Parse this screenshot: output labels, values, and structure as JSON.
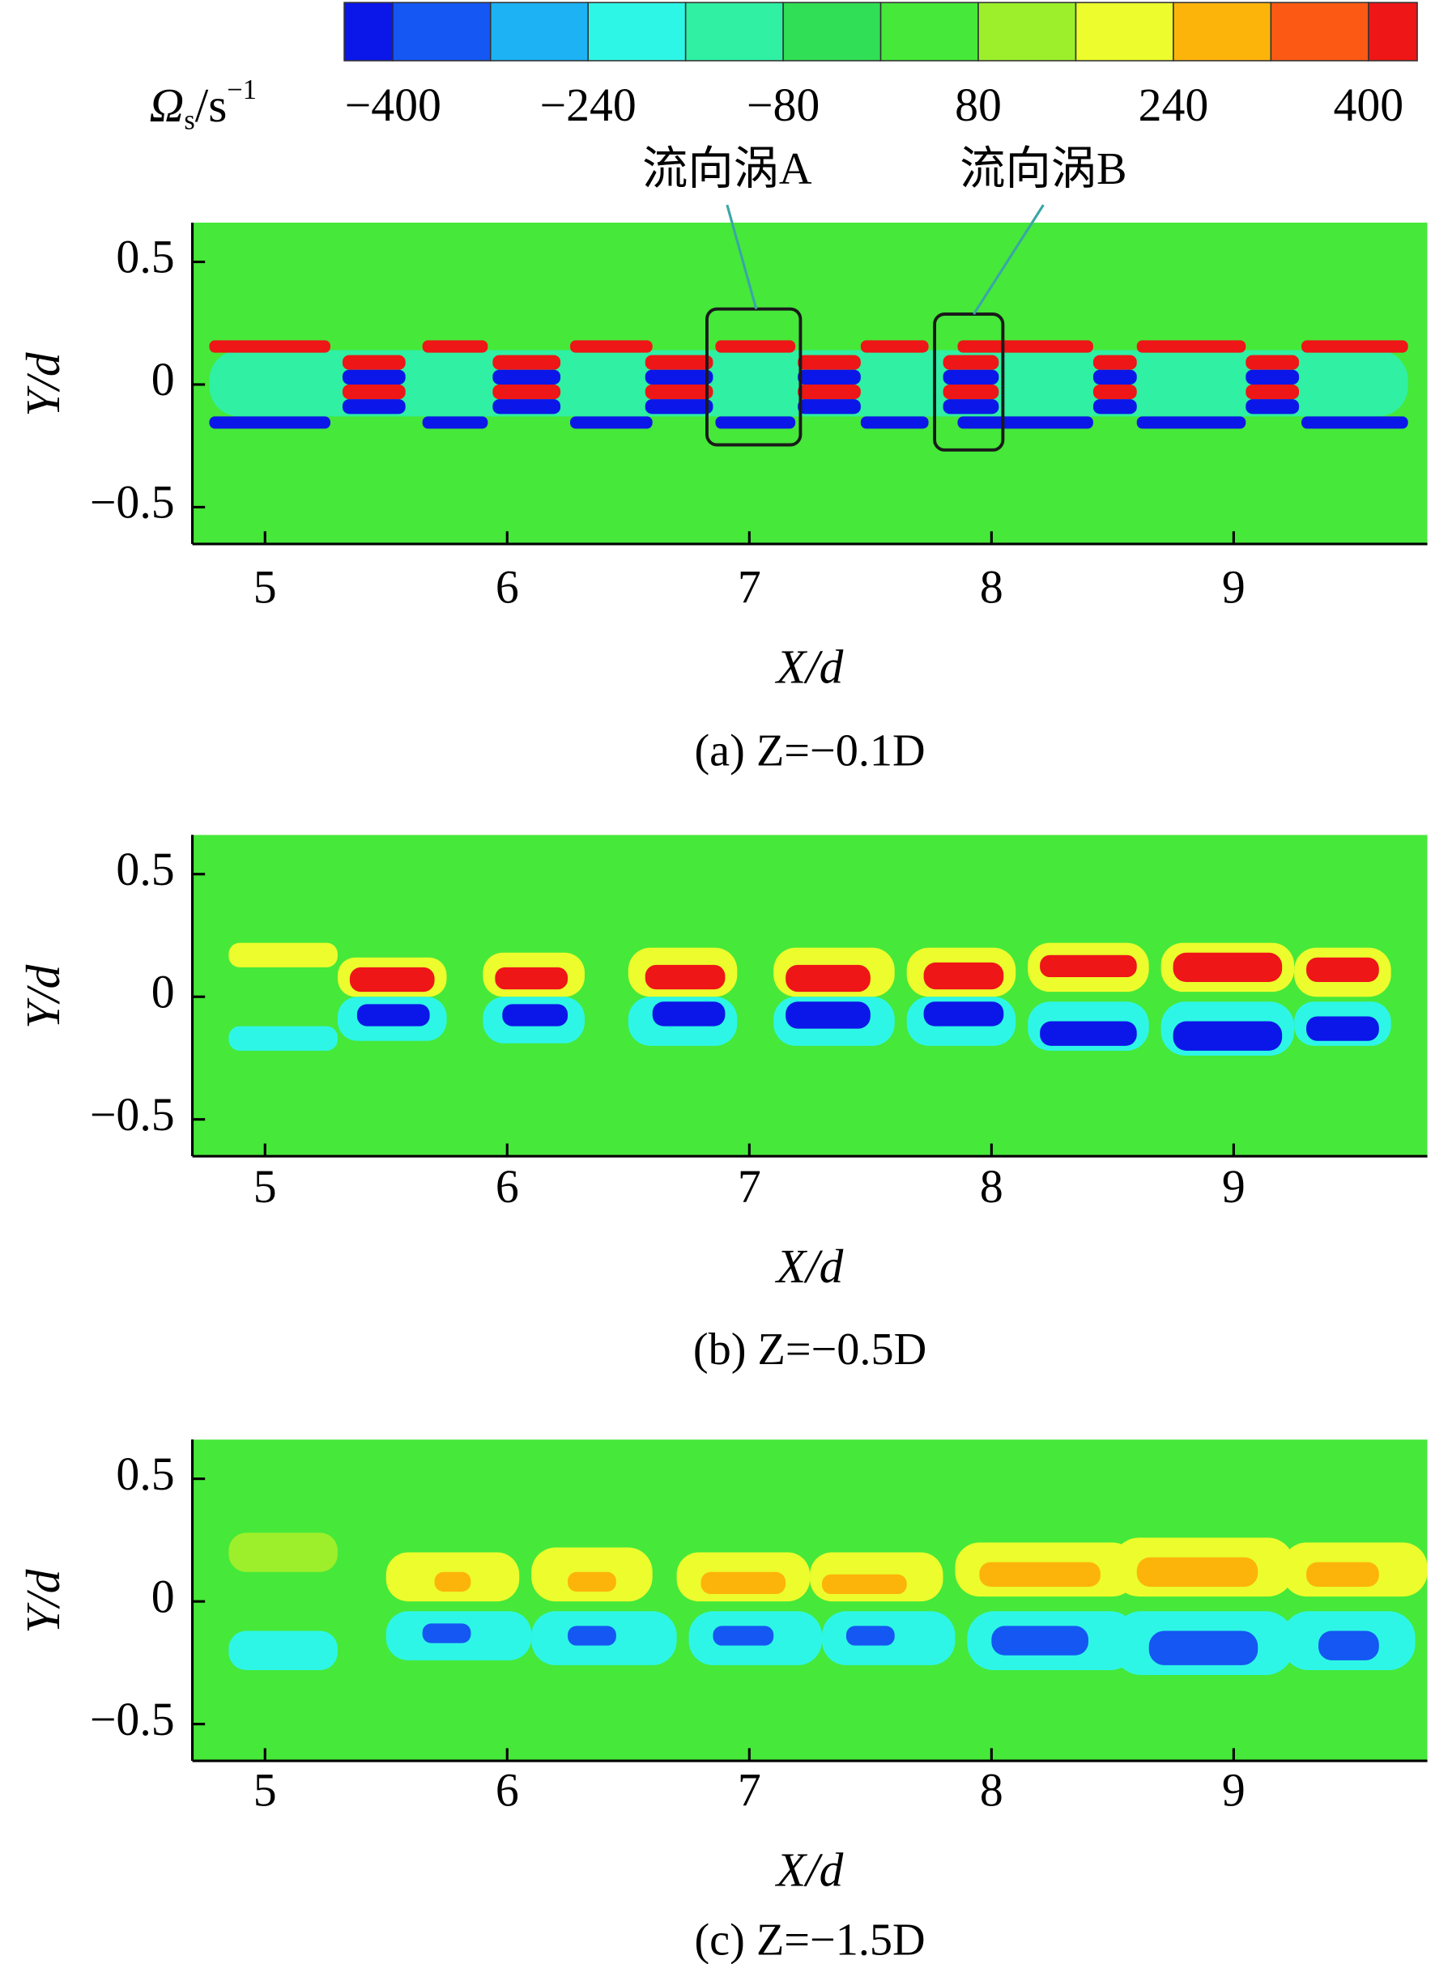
{
  "chart_data": {
    "type": "contour",
    "colorbar": {
      "label": {
        "symbol": "Ω",
        "subscript": "s",
        "unit": "/s",
        "exponent": "−1"
      },
      "lim": [
        -440,
        440
      ],
      "levels": [
        -400,
        -320,
        -240,
        -160,
        -80,
        0,
        80,
        160,
        240,
        320,
        400
      ],
      "colors": [
        "#0b17e8",
        "#1457f2",
        "#1cb2f4",
        "#2ef6e6",
        "#2ff0a3",
        "#30df55",
        "#46e83a",
        "#9cef2a",
        "#ecfc2d",
        "#fdb40a",
        "#fc5a14",
        "#ee1616"
      ],
      "ticks": [
        {
          "value": -400,
          "label": "−400"
        },
        {
          "value": -240,
          "label": "−240"
        },
        {
          "value": -80,
          "label": "−80"
        },
        80,
        240,
        400
      ]
    },
    "panels": [
      {
        "caption": "(a) Z=−0.1D",
        "xlabel": "X/d",
        "ylabel": "Y/d",
        "xlim": [
          4.7,
          9.8
        ],
        "ylim": [
          -0.65,
          0.66
        ],
        "xticks": [
          5,
          6,
          7,
          8,
          9
        ],
        "yticks": [
          {
            "value": -0.5,
            "label": "−0.5"
          },
          0,
          0.5
        ],
        "background_value": 40,
        "annotations": [
          {
            "text": "流向涡A",
            "box": [
              6.825,
              7.211,
              -0.246,
              0.308
            ]
          },
          {
            "text": "流向涡B",
            "box": [
              7.765,
              8.047,
              -0.267,
              0.287
            ]
          }
        ],
        "regions": [
          [
            4.77,
            9.72,
            -0.13,
            0.14,
            -100
          ],
          [
            4.77,
            5.27,
            0.13,
            0.18,
            420
          ],
          [
            5.65,
            5.92,
            0.13,
            0.18,
            420
          ],
          [
            6.26,
            6.6,
            0.13,
            0.18,
            420
          ],
          [
            6.86,
            7.19,
            0.13,
            0.18,
            420
          ],
          [
            7.46,
            7.74,
            0.13,
            0.18,
            420
          ],
          [
            7.86,
            8.42,
            0.13,
            0.18,
            420
          ],
          [
            8.6,
            9.05,
            0.13,
            0.18,
            420
          ],
          [
            9.28,
            9.72,
            0.13,
            0.18,
            420
          ],
          [
            4.77,
            5.27,
            -0.18,
            -0.13,
            -420
          ],
          [
            5.65,
            5.92,
            -0.18,
            -0.13,
            -420
          ],
          [
            6.26,
            6.6,
            -0.18,
            -0.13,
            -420
          ],
          [
            6.86,
            7.19,
            -0.18,
            -0.13,
            -420
          ],
          [
            7.46,
            7.74,
            -0.18,
            -0.13,
            -420
          ],
          [
            7.86,
            8.42,
            -0.18,
            -0.13,
            -420
          ],
          [
            8.6,
            9.05,
            -0.18,
            -0.13,
            -420
          ],
          [
            9.28,
            9.72,
            -0.18,
            -0.13,
            -420
          ],
          [
            5.32,
            5.58,
            0.06,
            0.12,
            420
          ],
          [
            5.32,
            5.58,
            0,
            0.06,
            -420
          ],
          [
            5.32,
            5.58,
            -0.06,
            0,
            420
          ],
          [
            5.32,
            5.58,
            -0.12,
            -0.06,
            -420
          ],
          [
            5.94,
            6.22,
            0.06,
            0.12,
            420
          ],
          [
            5.94,
            6.22,
            0,
            0.06,
            -420
          ],
          [
            5.94,
            6.22,
            -0.06,
            0,
            420
          ],
          [
            5.94,
            6.22,
            -0.12,
            -0.06,
            -420
          ],
          [
            6.57,
            6.85,
            0.06,
            0.12,
            420
          ],
          [
            6.57,
            6.85,
            0,
            0.06,
            -420
          ],
          [
            6.57,
            6.85,
            -0.06,
            0,
            420
          ],
          [
            6.57,
            6.85,
            -0.12,
            -0.06,
            -420
          ],
          [
            7.2,
            7.46,
            0.06,
            0.12,
            420
          ],
          [
            7.2,
            7.46,
            0,
            0.06,
            -420
          ],
          [
            7.2,
            7.46,
            -0.06,
            0,
            420
          ],
          [
            7.2,
            7.46,
            -0.12,
            -0.06,
            -420
          ],
          [
            7.8,
            8.03,
            0.06,
            0.12,
            420
          ],
          [
            7.8,
            8.03,
            0,
            0.06,
            -420
          ],
          [
            7.8,
            8.03,
            -0.06,
            0,
            420
          ],
          [
            7.8,
            8.03,
            -0.12,
            -0.06,
            -420
          ],
          [
            8.42,
            8.6,
            0.06,
            0.12,
            420
          ],
          [
            8.42,
            8.6,
            0,
            0.06,
            -420
          ],
          [
            8.42,
            8.6,
            -0.06,
            0,
            420
          ],
          [
            8.42,
            8.6,
            -0.12,
            -0.06,
            -420
          ],
          [
            9.05,
            9.27,
            0.06,
            0.12,
            420
          ],
          [
            9.05,
            9.27,
            0,
            0.06,
            -420
          ],
          [
            9.05,
            9.27,
            -0.06,
            0,
            420
          ],
          [
            9.05,
            9.27,
            -0.12,
            -0.06,
            -420
          ]
        ]
      },
      {
        "caption": "(b) Z=−0.5D",
        "xlabel": "X/d",
        "ylabel": "Y/d",
        "xlim": [
          4.7,
          9.8
        ],
        "ylim": [
          -0.65,
          0.66
        ],
        "xticks": [
          5,
          6,
          7,
          8,
          9
        ],
        "yticks": [
          {
            "value": -0.5,
            "label": "−0.5"
          },
          0,
          0.5
        ],
        "background_value": 40,
        "regions": [
          [
            4.85,
            5.3,
            0.12,
            0.22,
            200
          ],
          [
            4.85,
            5.3,
            -0.22,
            -0.12,
            -200
          ],
          [
            5.3,
            5.75,
            0,
            0.16,
            200
          ],
          [
            5.35,
            5.7,
            0.02,
            0.12,
            420
          ],
          [
            5.3,
            5.75,
            -0.18,
            0,
            -200
          ],
          [
            5.38,
            5.68,
            -0.12,
            -0.03,
            -420
          ],
          [
            5.9,
            6.32,
            0,
            0.18,
            200
          ],
          [
            5.95,
            6.25,
            0.03,
            0.12,
            420
          ],
          [
            5.9,
            6.32,
            -0.19,
            0,
            -200
          ],
          [
            5.98,
            6.25,
            -0.12,
            -0.03,
            -420
          ],
          [
            6.5,
            6.95,
            0,
            0.2,
            200
          ],
          [
            6.57,
            6.9,
            0.03,
            0.13,
            420
          ],
          [
            6.5,
            6.95,
            -0.2,
            0,
            -200
          ],
          [
            6.6,
            6.9,
            -0.12,
            -0.02,
            -420
          ],
          [
            7.1,
            7.6,
            0,
            0.2,
            200
          ],
          [
            7.15,
            7.5,
            0.02,
            0.13,
            420
          ],
          [
            7.1,
            7.6,
            -0.2,
            0,
            -200
          ],
          [
            7.15,
            7.5,
            -0.13,
            -0.02,
            -420
          ],
          [
            7.65,
            8.1,
            0,
            0.2,
            200
          ],
          [
            7.72,
            8.05,
            0.03,
            0.14,
            420
          ],
          [
            7.65,
            8.1,
            -0.2,
            0,
            -200
          ],
          [
            7.72,
            8.05,
            -0.12,
            -0.02,
            -420
          ],
          [
            8.15,
            8.65,
            0.02,
            0.22,
            200
          ],
          [
            8.2,
            8.6,
            0.08,
            0.17,
            420
          ],
          [
            8.15,
            8.65,
            -0.22,
            -0.02,
            -200
          ],
          [
            8.2,
            8.6,
            -0.2,
            -0.1,
            -420
          ],
          [
            8.7,
            9.25,
            0.02,
            0.22,
            200
          ],
          [
            8.75,
            9.2,
            0.06,
            0.18,
            420
          ],
          [
            8.7,
            9.25,
            -0.24,
            -0.02,
            -200
          ],
          [
            8.75,
            9.2,
            -0.22,
            -0.1,
            -420
          ],
          [
            9.25,
            9.65,
            0,
            0.2,
            200
          ],
          [
            9.3,
            9.6,
            0.06,
            0.16,
            420
          ],
          [
            9.25,
            9.65,
            -0.2,
            -0.02,
            -200
          ],
          [
            9.3,
            9.6,
            -0.18,
            -0.08,
            -420
          ]
        ]
      },
      {
        "caption": "(c) Z=−1.5D",
        "xlabel": "X/d",
        "ylabel": "Y/d",
        "xlim": [
          4.7,
          9.8
        ],
        "ylim": [
          -0.65,
          0.66
        ],
        "xticks": [
          5,
          6,
          7,
          8,
          9
        ],
        "yticks": [
          {
            "value": -0.5,
            "label": "−0.5"
          },
          0,
          0.5
        ],
        "background_value": 40,
        "regions": [
          [
            4.85,
            5.3,
            0.12,
            0.28,
            120
          ],
          [
            4.85,
            5.3,
            -0.28,
            -0.12,
            -200
          ],
          [
            5.5,
            6.05,
            0,
            0.2,
            200
          ],
          [
            5.7,
            5.85,
            0.04,
            0.12,
            280
          ],
          [
            5.5,
            6.1,
            -0.24,
            -0.04,
            -200
          ],
          [
            5.65,
            5.85,
            -0.17,
            -0.09,
            -330
          ],
          [
            6.1,
            6.6,
            0,
            0.22,
            200
          ],
          [
            6.25,
            6.45,
            0.04,
            0.12,
            280
          ],
          [
            6.1,
            6.7,
            -0.26,
            -0.04,
            -200
          ],
          [
            6.25,
            6.45,
            -0.18,
            -0.1,
            -330
          ],
          [
            6.7,
            7.25,
            0,
            0.2,
            200
          ],
          [
            6.8,
            7.15,
            0.03,
            0.12,
            280
          ],
          [
            6.75,
            7.3,
            -0.26,
            -0.04,
            -200
          ],
          [
            6.85,
            7.1,
            -0.18,
            -0.1,
            -330
          ],
          [
            7.25,
            7.8,
            0,
            0.2,
            200
          ],
          [
            7.3,
            7.65,
            0.03,
            0.11,
            280
          ],
          [
            7.3,
            7.85,
            -0.26,
            -0.04,
            -200
          ],
          [
            7.4,
            7.6,
            -0.18,
            -0.1,
            -330
          ],
          [
            7.85,
            8.6,
            0.02,
            0.24,
            200
          ],
          [
            7.95,
            8.45,
            0.06,
            0.16,
            280
          ],
          [
            7.9,
            8.6,
            -0.28,
            -0.04,
            -200
          ],
          [
            8.0,
            8.4,
            -0.22,
            -0.1,
            -330
          ],
          [
            8.5,
            9.25,
            0.02,
            0.26,
            200
          ],
          [
            8.6,
            9.1,
            0.06,
            0.18,
            280
          ],
          [
            8.5,
            9.25,
            -0.3,
            -0.04,
            -200
          ],
          [
            8.65,
            9.1,
            -0.26,
            -0.12,
            -330
          ],
          [
            9.2,
            9.8,
            0.02,
            0.24,
            200
          ],
          [
            9.3,
            9.6,
            0.06,
            0.16,
            280
          ],
          [
            9.2,
            9.75,
            -0.28,
            -0.04,
            -200
          ],
          [
            9.35,
            9.6,
            -0.24,
            -0.12,
            -330
          ]
        ]
      }
    ]
  }
}
